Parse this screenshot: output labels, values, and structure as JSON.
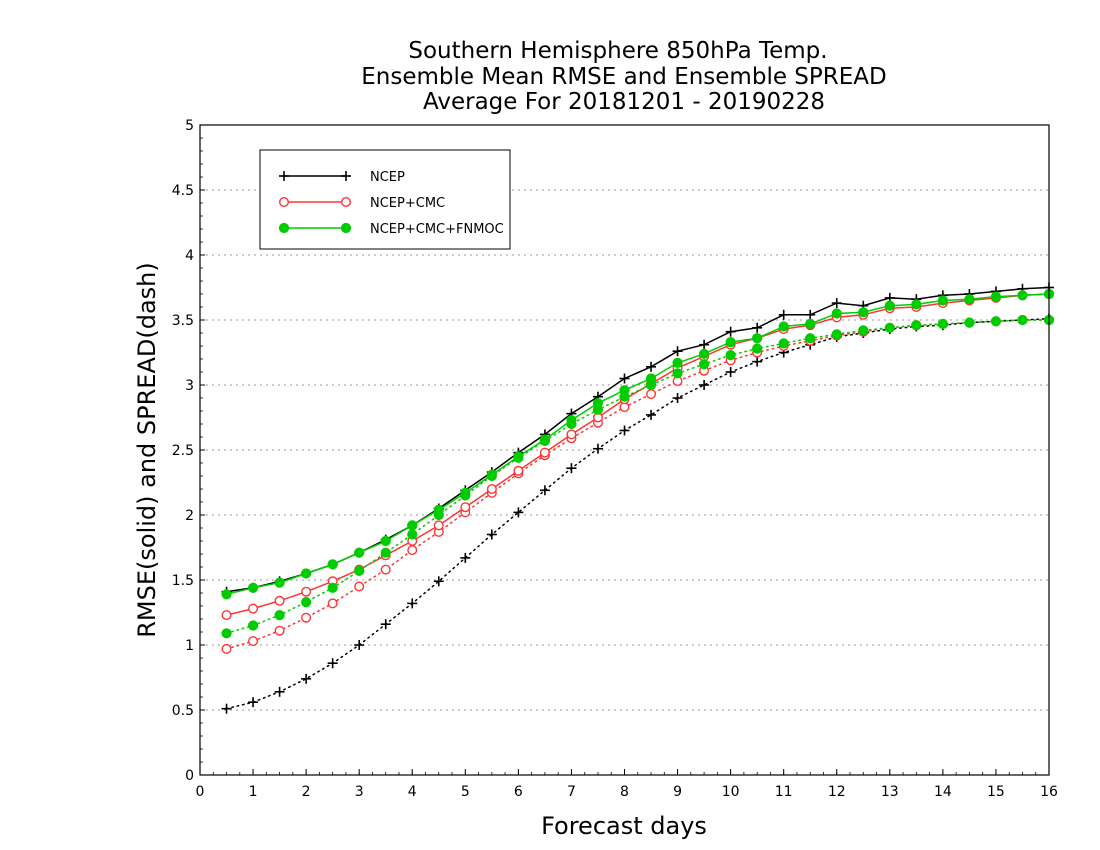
{
  "chart_data": {
    "type": "line",
    "title": [
      "Southern Hemisphere 850hPa Temp.",
      "Ensemble Mean RMSE and Ensemble SPREAD",
      "Average For 20181201 - 20190228"
    ],
    "xlabel": "Forecast days",
    "ylabel": "RMSE(solid) and SPREAD(dash)",
    "xlim": [
      0,
      16
    ],
    "ylim": [
      0,
      5
    ],
    "xticks": [
      0,
      1,
      2,
      3,
      4,
      5,
      6,
      7,
      8,
      9,
      10,
      11,
      12,
      13,
      14,
      15,
      16
    ],
    "yticks": [
      0,
      0.5,
      1,
      1.5,
      2,
      2.5,
      3,
      3.5,
      4,
      4.5,
      5
    ],
    "grid": true,
    "legend_position": "top-left",
    "x": [
      0.5,
      1,
      1.5,
      2,
      2.5,
      3,
      3.5,
      4,
      4.5,
      5,
      5.5,
      6,
      6.5,
      7,
      7.5,
      8,
      8.5,
      9,
      9.5,
      10,
      10.5,
      11,
      11.5,
      12,
      12.5,
      13,
      13.5,
      14,
      14.5,
      15,
      15.5,
      16
    ],
    "series": [
      {
        "name": "NCEP",
        "color": "#000000",
        "marker": "plus",
        "rmse": [
          1.41,
          1.44,
          1.49,
          1.55,
          1.62,
          1.71,
          1.81,
          1.92,
          2.05,
          2.19,
          2.33,
          2.48,
          2.62,
          2.78,
          2.91,
          3.05,
          3.14,
          3.26,
          3.31,
          3.41,
          3.44,
          3.54,
          3.54,
          3.63,
          3.61,
          3.67,
          3.66,
          3.69,
          3.7,
          3.72,
          3.74,
          3.75
        ],
        "spread": [
          0.51,
          0.56,
          0.64,
          0.74,
          0.86,
          1.0,
          1.16,
          1.32,
          1.49,
          1.67,
          1.85,
          2.02,
          2.19,
          2.36,
          2.51,
          2.65,
          2.77,
          2.9,
          3.0,
          3.1,
          3.18,
          3.25,
          3.31,
          3.37,
          3.4,
          3.43,
          3.45,
          3.46,
          3.48,
          3.49,
          3.5,
          3.51
        ]
      },
      {
        "name": "NCEP+CMC",
        "color": "#ff3333",
        "marker": "open-circle",
        "rmse": [
          1.23,
          1.28,
          1.34,
          1.41,
          1.49,
          1.58,
          1.69,
          1.8,
          1.92,
          2.06,
          2.2,
          2.34,
          2.48,
          2.62,
          2.75,
          2.89,
          3.01,
          3.13,
          3.22,
          3.31,
          3.36,
          3.43,
          3.46,
          3.52,
          3.54,
          3.59,
          3.6,
          3.63,
          3.65,
          3.67,
          3.69,
          3.7
        ],
        "spread": [
          0.97,
          1.03,
          1.11,
          1.21,
          1.32,
          1.45,
          1.58,
          1.73,
          1.87,
          2.02,
          2.17,
          2.32,
          2.46,
          2.59,
          2.71,
          2.83,
          2.93,
          3.03,
          3.11,
          3.19,
          3.25,
          3.3,
          3.34,
          3.38,
          3.41,
          3.44,
          3.46,
          3.47,
          3.48,
          3.49,
          3.5,
          3.5
        ]
      },
      {
        "name": "NCEP+CMC+FNMOC",
        "color": "#00cc00",
        "marker": "filled-circle",
        "rmse": [
          1.39,
          1.44,
          1.48,
          1.55,
          1.62,
          1.71,
          1.8,
          1.92,
          2.04,
          2.17,
          2.31,
          2.45,
          2.58,
          2.73,
          2.86,
          2.96,
          3.05,
          3.17,
          3.24,
          3.33,
          3.36,
          3.45,
          3.47,
          3.55,
          3.56,
          3.61,
          3.62,
          3.65,
          3.66,
          3.68,
          3.69,
          3.7
        ],
        "spread": [
          1.09,
          1.15,
          1.23,
          1.33,
          1.44,
          1.57,
          1.71,
          1.85,
          2.0,
          2.15,
          2.3,
          2.44,
          2.57,
          2.7,
          2.81,
          2.91,
          3.0,
          3.09,
          3.16,
          3.23,
          3.28,
          3.32,
          3.36,
          3.39,
          3.42,
          3.44,
          3.46,
          3.47,
          3.48,
          3.49,
          3.5,
          3.5
        ]
      }
    ]
  }
}
